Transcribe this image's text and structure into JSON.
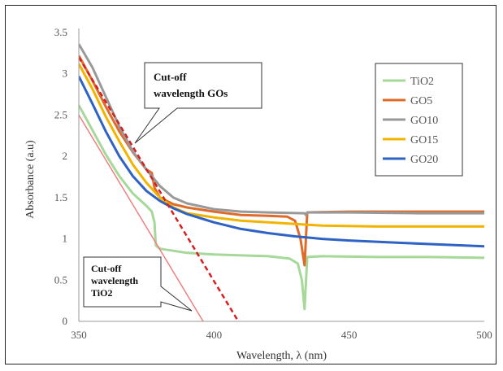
{
  "chart_data": {
    "type": "line",
    "title": "",
    "xlabel": "Wavelength, λ (nm)",
    "ylabel": "Absorbance (a.u)",
    "xlim": [
      350,
      500
    ],
    "ylim": [
      0,
      3.5
    ],
    "xticks": [
      350,
      400,
      450,
      500
    ],
    "yticks": [
      0,
      0.5,
      1,
      1.5,
      2,
      2.5,
      3,
      3.5
    ],
    "ytick_labels": [
      "0",
      "0.5",
      "1",
      "1.5",
      "2",
      "2.5",
      "3",
      "3.5"
    ],
    "grid": false,
    "legend_position": "right",
    "series": [
      {
        "name": "TiO2",
        "color": "#a6d89a",
        "points": [
          [
            350,
            2.62
          ],
          [
            355,
            2.32
          ],
          [
            360,
            2.02
          ],
          [
            365,
            1.76
          ],
          [
            370,
            1.55
          ],
          [
            375,
            1.4
          ],
          [
            377,
            1.33
          ],
          [
            378,
            1.2
          ],
          [
            378.5,
            0.92
          ],
          [
            380,
            0.88
          ],
          [
            390,
            0.83
          ],
          [
            400,
            0.81
          ],
          [
            410,
            0.8
          ],
          [
            420,
            0.79
          ],
          [
            428,
            0.76
          ],
          [
            431,
            0.7
          ],
          [
            432.5,
            0.5
          ],
          [
            433.5,
            0.15
          ],
          [
            434.5,
            0.78
          ],
          [
            440,
            0.79
          ],
          [
            460,
            0.78
          ],
          [
            480,
            0.78
          ],
          [
            500,
            0.77
          ]
        ]
      },
      {
        "name": "GO5",
        "color": "#e06a2a",
        "points": [
          [
            350,
            3.22
          ],
          [
            355,
            2.92
          ],
          [
            360,
            2.6
          ],
          [
            365,
            2.3
          ],
          [
            370,
            2.05
          ],
          [
            375,
            1.84
          ],
          [
            377,
            1.8
          ],
          [
            378,
            1.62
          ],
          [
            380,
            1.5
          ],
          [
            385,
            1.42
          ],
          [
            390,
            1.38
          ],
          [
            400,
            1.33
          ],
          [
            410,
            1.29
          ],
          [
            420,
            1.28
          ],
          [
            427,
            1.27
          ],
          [
            430,
            1.22
          ],
          [
            432,
            1.0
          ],
          [
            433.5,
            0.68
          ],
          [
            434.5,
            1.32
          ],
          [
            450,
            1.33
          ],
          [
            475,
            1.33
          ],
          [
            500,
            1.33
          ]
        ]
      },
      {
        "name": "GO10",
        "color": "#999999",
        "points": [
          [
            350,
            3.36
          ],
          [
            355,
            3.08
          ],
          [
            360,
            2.72
          ],
          [
            365,
            2.36
          ],
          [
            370,
            2.06
          ],
          [
            375,
            1.84
          ],
          [
            380,
            1.64
          ],
          [
            385,
            1.5
          ],
          [
            390,
            1.43
          ],
          [
            400,
            1.36
          ],
          [
            410,
            1.33
          ],
          [
            420,
            1.32
          ],
          [
            433.5,
            1.31
          ],
          [
            434,
            1.29
          ],
          [
            434.5,
            1.32
          ],
          [
            450,
            1.32
          ],
          [
            475,
            1.31
          ],
          [
            500,
            1.31
          ]
        ]
      },
      {
        "name": "GO15",
        "color": "#f2b400",
        "points": [
          [
            350,
            3.12
          ],
          [
            355,
            2.82
          ],
          [
            360,
            2.48
          ],
          [
            365,
            2.18
          ],
          [
            370,
            1.9
          ],
          [
            375,
            1.68
          ],
          [
            380,
            1.5
          ],
          [
            385,
            1.38
          ],
          [
            390,
            1.31
          ],
          [
            400,
            1.26
          ],
          [
            410,
            1.22
          ],
          [
            420,
            1.2
          ],
          [
            430,
            1.18
          ],
          [
            440,
            1.16
          ],
          [
            460,
            1.15
          ],
          [
            480,
            1.15
          ],
          [
            500,
            1.15
          ]
        ]
      },
      {
        "name": "GO20",
        "color": "#2e62c4",
        "points": [
          [
            350,
            2.97
          ],
          [
            355,
            2.64
          ],
          [
            360,
            2.3
          ],
          [
            365,
            2.0
          ],
          [
            370,
            1.76
          ],
          [
            375,
            1.58
          ],
          [
            380,
            1.46
          ],
          [
            385,
            1.37
          ],
          [
            390,
            1.3
          ],
          [
            400,
            1.2
          ],
          [
            410,
            1.12
          ],
          [
            420,
            1.07
          ],
          [
            430,
            1.03
          ],
          [
            440,
            1.0
          ],
          [
            450,
            0.98
          ],
          [
            470,
            0.95
          ],
          [
            500,
            0.91
          ]
        ]
      }
    ],
    "tangent_lines": [
      {
        "label": "TiO2 cut-off",
        "color": "#f08080",
        "style": "solid",
        "points": [
          [
            350,
            2.5
          ],
          [
            396,
            0
          ]
        ]
      },
      {
        "label": "GOs cut-off",
        "color": "#d42020",
        "style": "dashed",
        "points": [
          [
            350,
            3.2
          ],
          [
            409,
            0
          ]
        ]
      }
    ],
    "annotations": [
      {
        "lines": [
          "Cut-off",
          "wavelength  GOs"
        ]
      },
      {
        "lines": [
          "Cut-off",
          "wavelength",
          "TiO2"
        ]
      }
    ]
  }
}
